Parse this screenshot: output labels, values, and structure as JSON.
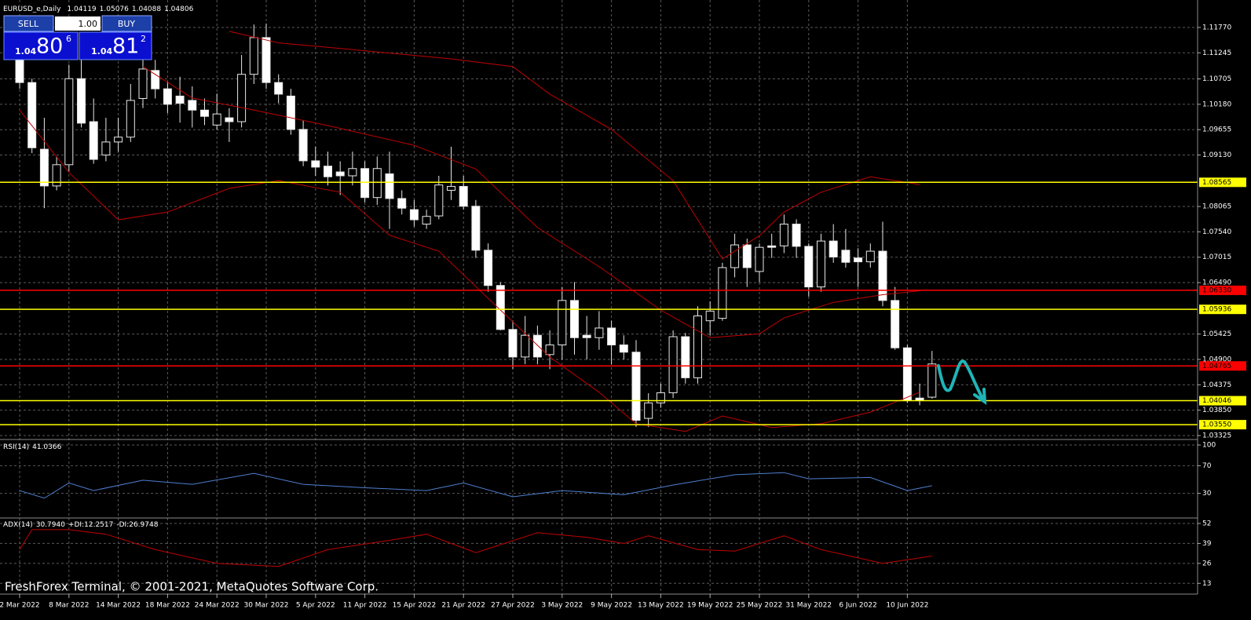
{
  "chart_data": [
    {
      "type": "candlestick",
      "symbol": "EURUSD_e,Daily",
      "categories": [
        "2 Mar 2022",
        null,
        null,
        null,
        "8 Mar 2022",
        null,
        null,
        null,
        "14 Mar 2022",
        null,
        null,
        null,
        "18 Mar 2022",
        null,
        null,
        null,
        "24 Mar 2022",
        null,
        null,
        null,
        "30 Mar 2022",
        null,
        null,
        null,
        "5 Apr 2022",
        null,
        null,
        null,
        "11 Apr 2022",
        null,
        null,
        null,
        "15 Apr 2022",
        null,
        null,
        null,
        "21 Apr 2022",
        null,
        null,
        null,
        "27 Apr 2022",
        null,
        null,
        null,
        "3 May 2022",
        null,
        null,
        null,
        "9 May 2022",
        null,
        null,
        null,
        "13 May 2022",
        null,
        null,
        null,
        "19 May 2022",
        null,
        null,
        null,
        "25 May 2022",
        null,
        null,
        null,
        "31 May 2022",
        null,
        null,
        null,
        "6 Jun 2022",
        null,
        null,
        null,
        "10 Jun 2022",
        null,
        null
      ],
      "ohlc": [
        [
          1.1112,
          1.1145,
          1.105,
          1.1063
        ],
        [
          1.1063,
          1.1071,
          1.0917,
          1.0928
        ],
        [
          1.0925,
          1.099,
          1.0803,
          1.0849
        ],
        [
          1.0849,
          1.091,
          1.084,
          1.0893
        ],
        [
          1.0893,
          1.11,
          1.088,
          1.1071
        ],
        [
          1.1071,
          1.112,
          1.097,
          1.0979
        ],
        [
          1.0982,
          1.103,
          1.0895,
          1.0904
        ],
        [
          1.0913,
          1.099,
          1.09,
          1.094
        ],
        [
          1.094,
          1.099,
          1.092,
          1.095
        ],
        [
          1.095,
          1.106,
          1.094,
          1.1026
        ],
        [
          1.103,
          1.115,
          1.101,
          1.1091
        ],
        [
          1.1088,
          1.111,
          1.103,
          1.105
        ],
        [
          1.105,
          1.1065,
          1.1,
          1.1018
        ],
        [
          1.1035,
          1.1075,
          1.098,
          1.102
        ],
        [
          1.1026,
          1.1055,
          1.097,
          1.1006
        ],
        [
          1.1006,
          1.103,
          1.0975,
          1.0993
        ],
        [
          1.0975,
          1.104,
          1.0965,
          1.0998
        ],
        [
          1.099,
          1.101,
          1.094,
          1.0982
        ],
        [
          1.0982,
          1.112,
          1.097,
          1.108
        ],
        [
          1.108,
          1.1183,
          1.106,
          1.1156
        ],
        [
          1.1156,
          1.1185,
          1.105,
          1.1063
        ],
        [
          1.1063,
          1.108,
          1.102,
          1.1039
        ],
        [
          1.1035,
          1.105,
          1.0955,
          1.0966
        ],
        [
          1.0966,
          1.0985,
          1.089,
          1.0901
        ],
        [
          1.0901,
          1.093,
          1.087,
          1.0888
        ],
        [
          1.089,
          1.092,
          1.085,
          1.0868
        ],
        [
          1.0878,
          1.09,
          1.083,
          1.087
        ],
        [
          1.087,
          1.092,
          1.085,
          1.0885
        ],
        [
          1.0885,
          1.09,
          1.0815,
          1.0825
        ],
        [
          1.0825,
          1.091,
          1.081,
          1.0885
        ],
        [
          1.0874,
          1.092,
          1.076,
          1.0823
        ],
        [
          1.0823,
          1.084,
          1.079,
          1.0803
        ],
        [
          1.08,
          1.082,
          1.0765,
          1.0779
        ],
        [
          1.077,
          1.08,
          1.076,
          1.0786
        ],
        [
          1.0787,
          1.087,
          1.078,
          1.0851
        ],
        [
          1.084,
          1.093,
          1.082,
          1.0848
        ],
        [
          1.0848,
          1.087,
          1.08,
          1.0807
        ],
        [
          1.0807,
          1.082,
          1.07,
          1.0716
        ],
        [
          1.0716,
          1.073,
          1.063,
          1.0643
        ],
        [
          1.0643,
          1.065,
          1.055,
          1.0552
        ],
        [
          1.0552,
          1.057,
          1.047,
          1.0495
        ],
        [
          1.0495,
          1.058,
          1.048,
          1.054
        ],
        [
          1.054,
          1.056,
          1.048,
          1.0495
        ],
        [
          1.05,
          1.055,
          1.047,
          1.052
        ],
        [
          1.052,
          1.064,
          1.049,
          1.0612
        ],
        [
          1.0612,
          1.065,
          1.05,
          1.0535
        ],
        [
          1.054,
          1.058,
          1.049,
          1.0535
        ],
        [
          1.0535,
          1.059,
          1.051,
          1.0555
        ],
        [
          1.0555,
          1.057,
          1.048,
          1.052
        ],
        [
          1.052,
          1.054,
          1.049,
          1.0505
        ],
        [
          1.0505,
          1.053,
          1.035,
          1.0364
        ],
        [
          1.0368,
          1.042,
          1.035,
          1.04
        ],
        [
          1.04,
          1.044,
          1.039,
          1.0421
        ],
        [
          1.0421,
          1.055,
          1.041,
          1.0537
        ],
        [
          1.0537,
          1.0545,
          1.044,
          1.0452
        ],
        [
          1.0452,
          1.06,
          1.044,
          1.058
        ],
        [
          1.057,
          1.061,
          1.054,
          1.059
        ],
        [
          1.0575,
          1.069,
          1.057,
          1.068
        ],
        [
          1.068,
          1.075,
          1.066,
          1.0727
        ],
        [
          1.0727,
          1.074,
          1.064,
          1.068
        ],
        [
          1.0672,
          1.073,
          1.065,
          1.0722
        ],
        [
          1.0725,
          1.075,
          1.07,
          1.0722
        ],
        [
          1.0725,
          1.079,
          1.071,
          1.077
        ],
        [
          1.077,
          1.078,
          1.07,
          1.0724
        ],
        [
          1.0724,
          1.073,
          1.062,
          1.064
        ],
        [
          1.064,
          1.075,
          1.063,
          1.0735
        ],
        [
          1.0735,
          1.077,
          1.069,
          1.0702
        ],
        [
          1.0716,
          1.076,
          1.068,
          1.0691
        ],
        [
          1.07,
          1.072,
          1.064,
          1.0692
        ],
        [
          1.0692,
          1.073,
          1.068,
          1.0714
        ],
        [
          1.0714,
          1.0775,
          1.06,
          1.0612
        ],
        [
          1.0612,
          1.064,
          1.051,
          1.0514
        ],
        [
          1.0514,
          1.052,
          1.04,
          1.0405
        ],
        [
          1.041,
          1.044,
          1.0395,
          1.0405
        ],
        [
          1.04119,
          1.05076,
          1.04088,
          1.04806
        ]
      ],
      "bull_color": "#000000",
      "bear_color": "#ffffff",
      "ylim": [
        1.03243,
        1.12338
      ],
      "yticks": [
        {
          "value": 1.1177,
          "label": "1.11770"
        },
        1.11245,
        1.10705,
        {
          "value": 1.1018,
          "label": "1.10180"
        },
        1.09655,
        {
          "value": 1.0913,
          "label": "1.09130"
        },
        1.08065,
        {
          "value": 1.0754,
          "label": "1.07540"
        },
        1.07015,
        {
          "value": 1.0649,
          "label": "1.06490"
        },
        1.05425,
        {
          "value": 1.049,
          "label": "1.04900"
        },
        1.04375,
        {
          "value": 1.0385,
          "label": "1.03850"
        },
        1.03325
      ],
      "levels": [
        {
          "value": 1.08565,
          "color": "#ffff00"
        },
        {
          "value": 1.0633,
          "label": "1.06330",
          "color": "#ff0000"
        },
        {
          "value": 1.05936,
          "color": "#ffff00"
        },
        {
          "value": 1.04765,
          "color": "#ff0000"
        },
        {
          "value": 1.04046,
          "color": "#ffff00"
        },
        {
          "value": 1.0355,
          "label": "1.03550",
          "color": "#ffff00"
        }
      ],
      "bands": [
        {
          "color": "#c00000",
          "x": [
            17,
            21,
            25,
            35,
            40,
            43,
            48,
            53,
            57,
            60,
            62,
            65,
            69,
            73
          ],
          "values": [
            1.1169,
            1.1145,
            1.1136,
            1.1112,
            1.1096,
            1.1039,
            1.0966,
            1.086,
            1.0698,
            1.0746,
            1.0795,
            1.0836,
            1.0868,
            1.0852
          ]
        },
        {
          "color": "#c00000",
          "x": [
            10,
            14,
            19,
            25,
            32,
            37,
            42,
            47,
            52,
            56,
            60,
            62,
            66,
            70,
            73
          ],
          "values": [
            1.1096,
            1.1031,
            1.1006,
            1.0974,
            1.0933,
            1.0884,
            1.0763,
            1.0682,
            1.0592,
            1.0535,
            1.0543,
            1.0576,
            1.0608,
            1.0624,
            1.0632
          ]
        },
        {
          "color": "#c00000",
          "x": [
            0,
            4,
            8,
            12,
            17,
            21,
            26,
            30,
            34,
            39,
            43,
            47,
            50,
            54,
            57,
            61,
            65,
            69,
            73
          ],
          "values": [
            1.1006,
            1.0877,
            1.0779,
            1.0795,
            1.0844,
            1.086,
            1.0836,
            1.0747,
            1.0714,
            1.0592,
            1.0495,
            1.0422,
            1.0357,
            1.0341,
            1.0373,
            1.0349,
            1.0357,
            1.0381,
            1.0422
          ]
        }
      ],
      "grid": true
    },
    {
      "type": "line",
      "title": "RSI(14)",
      "color": "#4f7fd0",
      "x": [
        0,
        2,
        4,
        6,
        10,
        14,
        19,
        23,
        28,
        33,
        36,
        40,
        44,
        49,
        53,
        58,
        62,
        64,
        69,
        72,
        74
      ],
      "values": [
        34,
        23,
        45,
        34,
        49,
        43,
        59,
        43,
        38,
        34,
        45,
        25,
        34,
        28,
        42,
        57,
        60,
        51,
        53,
        34,
        41.0366
      ],
      "ylim": [
        0,
        100
      ],
      "yticks": [
        100,
        70,
        30
      ],
      "grid": true
    },
    {
      "type": "line",
      "title": "ADX(14)",
      "readout": "30.7940",
      "color": "#c00000",
      "di": [
        {
          "name": "+DI:",
          "value": 12.2517
        },
        {
          "name": "-DI:",
          "value": 26.9748
        }
      ],
      "x": [
        0,
        1,
        4,
        7,
        11,
        16,
        21,
        25,
        30,
        33,
        37,
        42,
        46,
        49,
        51,
        55,
        58,
        62,
        65,
        70,
        74
      ],
      "values": [
        35,
        48,
        48,
        45,
        35,
        26,
        24,
        35,
        41,
        45,
        33,
        46,
        43,
        39,
        44,
        35,
        34,
        44,
        35,
        26,
        30.794
      ],
      "ylim": [
        6,
        52
      ],
      "yticks": [
        52,
        39,
        26,
        13
      ],
      "grid": true
    }
  ],
  "trade_panel": {
    "sell": "SELL",
    "lots": "1.00",
    "buy": "BUY",
    "bid": {
      "big": "1.04",
      "pips": "80",
      "frac": "6"
    },
    "ask": {
      "big": "1.04",
      "pips": "81",
      "frac": "2"
    }
  },
  "footer": "FreshForex Terminal, © 2001-2021, MetaQuotes Software Corp."
}
